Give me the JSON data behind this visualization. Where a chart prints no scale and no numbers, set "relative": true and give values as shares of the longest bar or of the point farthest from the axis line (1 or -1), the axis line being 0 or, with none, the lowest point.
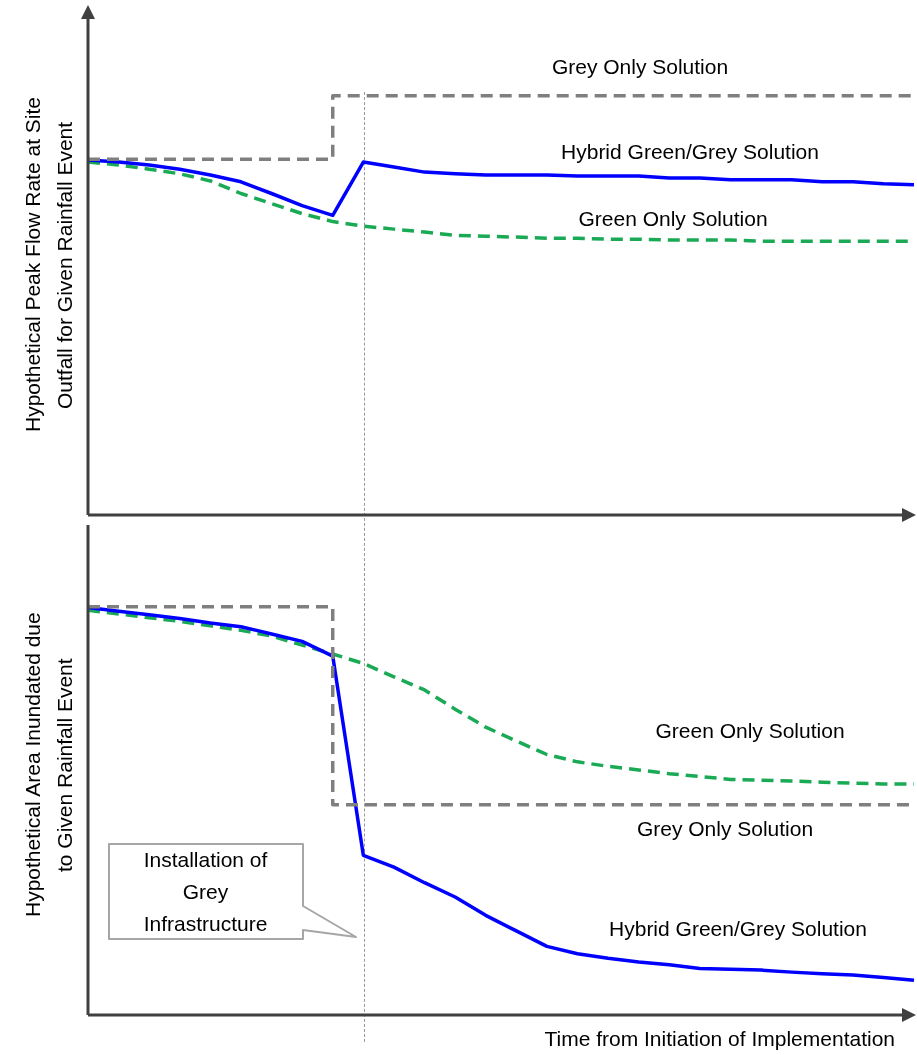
{
  "chart_data": [
    {
      "type": "line",
      "relative": true,
      "marker": "none",
      "ylabel": "Hypothetical Peak Flow Rate at Site Outfall for Given Rainfall Event",
      "categories": [
        null,
        null,
        null,
        null,
        null,
        null,
        null,
        null,
        null,
        null,
        null,
        null,
        null,
        null,
        null,
        null,
        null,
        null,
        null,
        null,
        null,
        null,
        null,
        null,
        null,
        null,
        null,
        null
      ],
      "series": [
        {
          "name": "Grey Only Solution",
          "type": "step",
          "color": "#7f7f7f",
          "line_style": "dashed",
          "values": [
            0.849,
            0.849,
            0.849,
            0.849,
            0.849,
            0.849,
            0.849,
            0.849,
            0.849,
            1.0,
            1.0,
            1.0,
            1.0,
            1.0,
            1.0,
            1.0,
            1.0,
            1.0,
            1.0,
            1.0,
            1.0,
            1.0,
            1.0,
            1.0,
            1.0,
            1.0,
            1.0,
            1.0
          ]
        },
        {
          "name": "Hybrid Green/Grey Solution",
          "color": "#0000ff",
          "line_style": "solid",
          "values": [
            0.847,
            0.842,
            0.835,
            0.825,
            0.811,
            0.795,
            0.767,
            0.738,
            0.715,
            0.842,
            0.83,
            0.818,
            0.814,
            0.811,
            0.811,
            0.811,
            0.809,
            0.809,
            0.809,
            0.804,
            0.804,
            0.8,
            0.8,
            0.8,
            0.795,
            0.795,
            0.79,
            0.788
          ]
        },
        {
          "name": "Green Only Solution",
          "color": "#1aaa55",
          "line_style": "dashed",
          "values": [
            0.842,
            0.835,
            0.825,
            0.814,
            0.797,
            0.767,
            0.743,
            0.719,
            0.7,
            0.689,
            0.682,
            0.675,
            0.667,
            0.665,
            0.663,
            0.66,
            0.66,
            0.658,
            0.658,
            0.656,
            0.656,
            0.656,
            0.653,
            0.653,
            0.653,
            0.653,
            0.653,
            0.653
          ]
        }
      ]
    },
    {
      "type": "line",
      "relative": true,
      "marker": "none",
      "ylabel": "Hypothetical Area Inundated due to Given Rainfall Event",
      "xlabel": "Time from Initiation of Implementation",
      "annotations": [
        "Installation of Grey Infrastructure"
      ],
      "categories": [
        null,
        null,
        null,
        null,
        null,
        null,
        null,
        null,
        null,
        null,
        null,
        null,
        null,
        null,
        null,
        null,
        null,
        null,
        null,
        null,
        null,
        null,
        null,
        null,
        null,
        null,
        null,
        null
      ],
      "series": [
        {
          "name": "Grey Only Solution",
          "type": "step",
          "color": "#7f7f7f",
          "line_style": "dashed",
          "values": [
            1.0,
            1.0,
            1.0,
            1.0,
            1.0,
            1.0,
            1.0,
            1.0,
            1.0,
            0.515,
            0.515,
            0.515,
            0.515,
            0.515,
            0.515,
            0.515,
            0.515,
            0.515,
            0.515,
            0.515,
            0.515,
            0.515,
            0.515,
            0.515,
            0.515,
            0.515,
            0.515,
            0.515
          ]
        },
        {
          "name": "Hybrid Green/Grey Solution",
          "color": "#0000ff",
          "line_style": "solid",
          "values": [
            0.998,
            0.989,
            0.98,
            0.971,
            0.96,
            0.951,
            0.933,
            0.915,
            0.879,
            0.391,
            0.362,
            0.324,
            0.289,
            0.244,
            0.206,
            0.168,
            0.15,
            0.139,
            0.13,
            0.123,
            0.114,
            0.112,
            0.11,
            0.105,
            0.101,
            0.098,
            0.092,
            0.085
          ]
        },
        {
          "name": "Green Only Solution",
          "color": "#1aaa55",
          "line_style": "dashed",
          "values": [
            0.991,
            0.982,
            0.973,
            0.964,
            0.953,
            0.942,
            0.928,
            0.906,
            0.884,
            0.861,
            0.828,
            0.796,
            0.749,
            0.705,
            0.671,
            0.638,
            0.62,
            0.609,
            0.6,
            0.591,
            0.584,
            0.577,
            0.575,
            0.573,
            0.57,
            0.568,
            0.566,
            0.566
          ]
        }
      ]
    }
  ]
}
